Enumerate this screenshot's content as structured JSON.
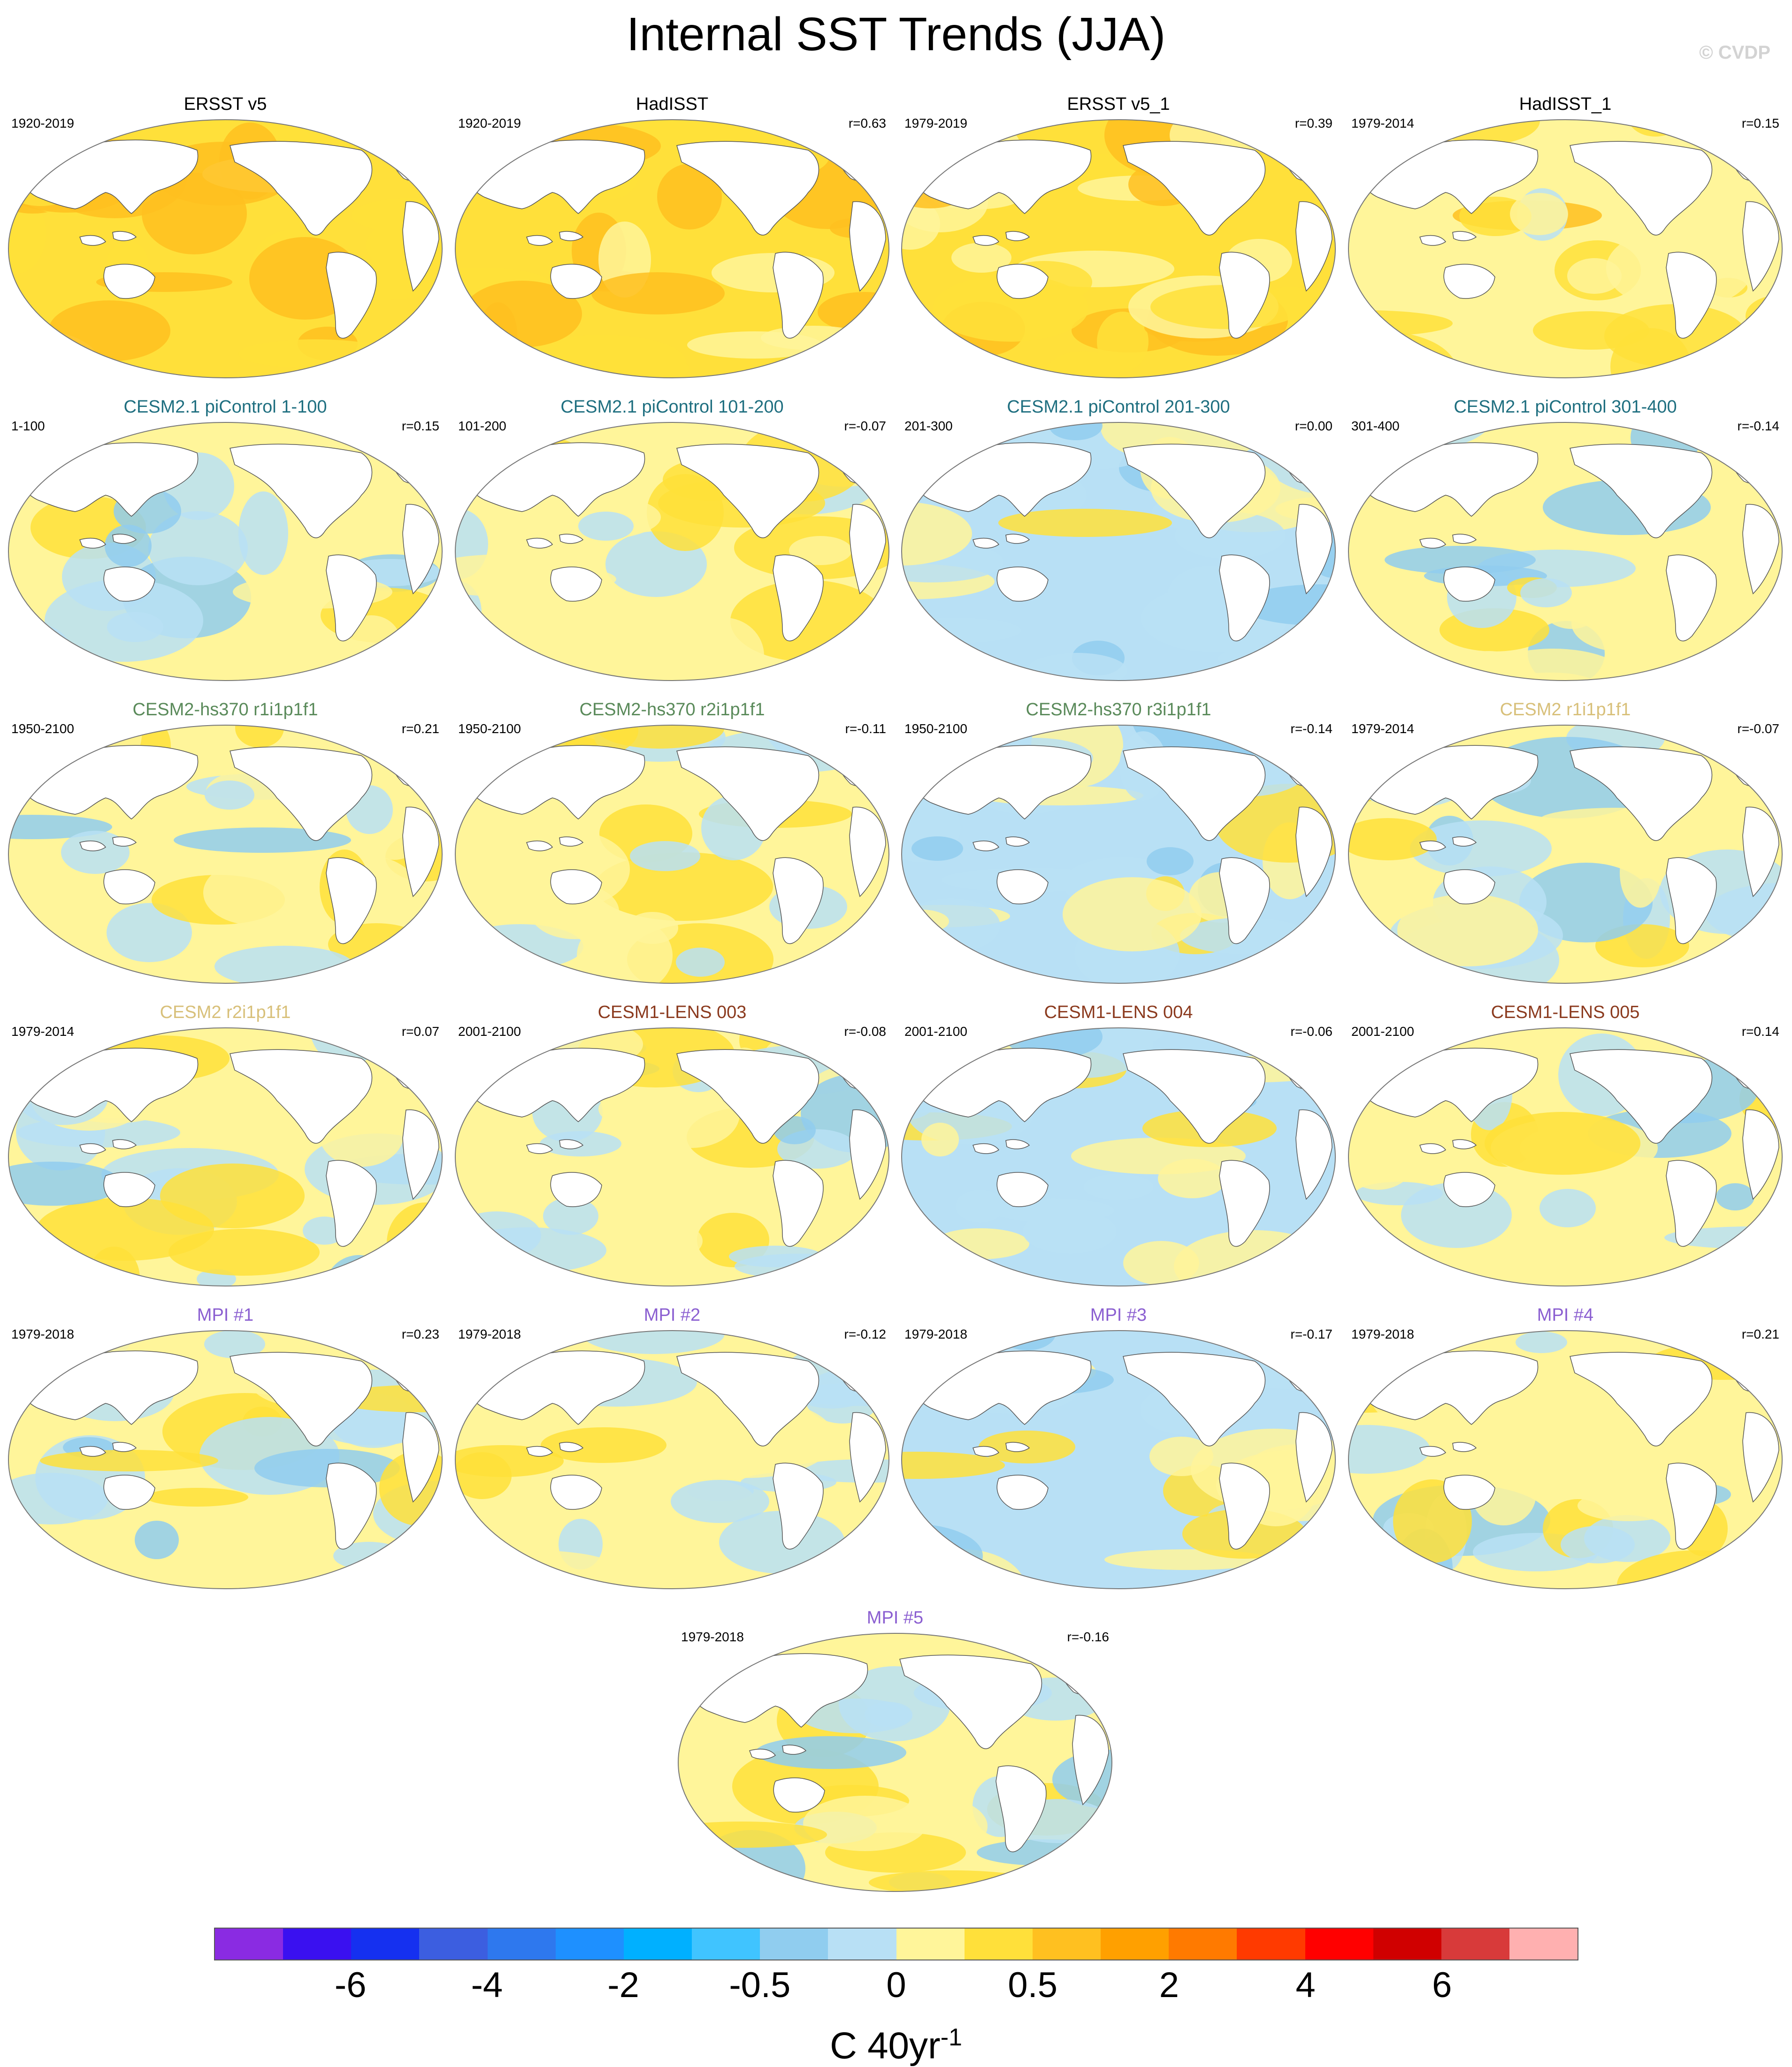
{
  "title": "Internal SST Trends (JJA)",
  "watermark": "© CVDP",
  "colors": {
    "obs_title": "#000000",
    "cesm21_picontrol": "#1f6f80",
    "cesm2_hs370": "#5a8a5a",
    "cesm2": "#d8c07a",
    "cesm1_lens": "#8b3a1e",
    "mpi": "#8b5fd1",
    "land": "#ffffff",
    "coast": "#555555"
  },
  "panels": [
    {
      "title": "ERSST v5",
      "period": "1920-2019",
      "r": "",
      "title_color": "#000000",
      "level": 0.5
    },
    {
      "title": "HadISST",
      "period": "1920-2019",
      "r": "r=0.63",
      "title_color": "#000000",
      "level": 0.5
    },
    {
      "title": "ERSST v5_1",
      "period": "1979-2019",
      "r": "r=0.39",
      "title_color": "#000000",
      "level": 0.35
    },
    {
      "title": "HadISST_1",
      "period": "1979-2014",
      "r": "r=0.15",
      "title_color": "#000000",
      "level": 0.25
    },
    {
      "title": "CESM2.1 piControl 1-100",
      "period": "1-100",
      "r": "r=0.15",
      "title_color": "#1f6f80",
      "level": 0.0
    },
    {
      "title": "CESM2.1 piControl 101-200",
      "period": "101-200",
      "r": "r=-0.07",
      "title_color": "#1f6f80",
      "level": 0.1
    },
    {
      "title": "CESM2.1 piControl 201-300",
      "period": "201-300",
      "r": "r=0.00",
      "title_color": "#1f6f80",
      "level": -0.1
    },
    {
      "title": "CESM2.1 piControl 301-400",
      "period": "301-400",
      "r": "r=-0.14",
      "title_color": "#1f6f80",
      "level": 0.0
    },
    {
      "title": "CESM2-hs370 r1i1p1f1",
      "period": "1950-2100",
      "r": "r=0.21",
      "title_color": "#5a8a5a",
      "level": 0.0
    },
    {
      "title": "CESM2-hs370 r2i1p1f1",
      "period": "1950-2100",
      "r": "r=-0.11",
      "title_color": "#5a8a5a",
      "level": 0.0
    },
    {
      "title": "CESM2-hs370 r3i1p1f1",
      "period": "1950-2100",
      "r": "r=-0.14",
      "title_color": "#5a8a5a",
      "level": -0.05
    },
    {
      "title": "CESM2 r1i1p1f1",
      "period": "1979-2014",
      "r": "r=-0.07",
      "title_color": "#d8c07a",
      "level": 0.0
    },
    {
      "title": "CESM2 r2i1p1f1",
      "period": "1979-2014",
      "r": "r=0.07",
      "title_color": "#d8c07a",
      "level": 0.05
    },
    {
      "title": "CESM1-LENS 003",
      "period": "2001-2100",
      "r": "r=-0.08",
      "title_color": "#8b3a1e",
      "level": 0.0
    },
    {
      "title": "CESM1-LENS 004",
      "period": "2001-2100",
      "r": "r=-0.06",
      "title_color": "#8b3a1e",
      "level": -0.05
    },
    {
      "title": "CESM1-LENS 005",
      "period": "2001-2100",
      "r": "r=0.14",
      "title_color": "#8b3a1e",
      "level": 0.0
    },
    {
      "title": "MPI #1",
      "period": "1979-2018",
      "r": "r=0.23",
      "title_color": "#8b5fd1",
      "level": 0.0
    },
    {
      "title": "MPI #2",
      "period": "1979-2018",
      "r": "r=-0.12",
      "title_color": "#8b5fd1",
      "level": 0.05
    },
    {
      "title": "MPI #3",
      "period": "1979-2018",
      "r": "r=-0.17",
      "title_color": "#8b5fd1",
      "level": -0.05
    },
    {
      "title": "MPI #4",
      "period": "1979-2018",
      "r": "r=0.21",
      "title_color": "#8b5fd1",
      "level": 0.05
    },
    {
      "title": "MPI #5",
      "period": "1979-2018",
      "r": "r=-0.16",
      "title_color": "#8b5fd1",
      "level": 0.0
    }
  ],
  "colorbar": {
    "colors": [
      "#8a2be2",
      "#3a10f0",
      "#1530f0",
      "#3c5ee0",
      "#2e78ee",
      "#1e90ff",
      "#00b0ff",
      "#40c4ff",
      "#90cdef",
      "#b8e0f5",
      "#fff59a",
      "#ffe03a",
      "#ffc020",
      "#ffa000",
      "#ff7a00",
      "#ff3a00",
      "#ff0000",
      "#d00000",
      "#d83a3a",
      "#ffb0b0"
    ],
    "labels": [
      "-6",
      "-4",
      "-2",
      "-0.5",
      "0",
      "0.5",
      "2",
      "4",
      "6"
    ],
    "units": "C 40yr",
    "units_exp": "-1"
  }
}
